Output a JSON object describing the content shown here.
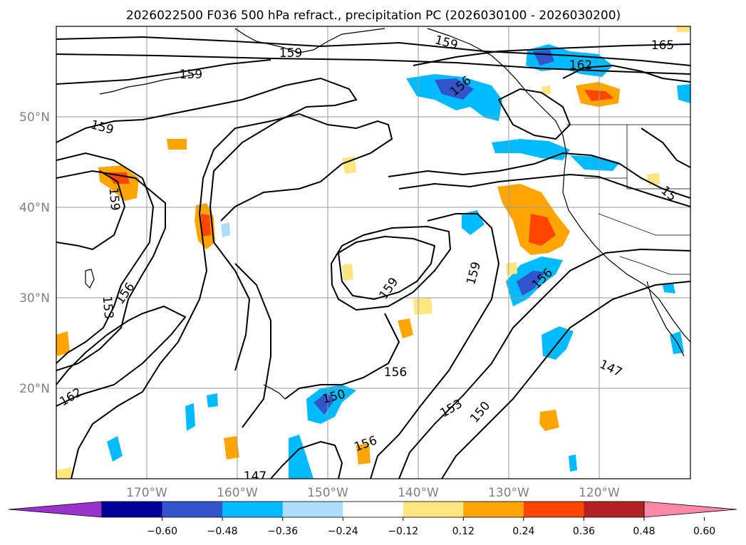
{
  "title": "2026022500 F036 500 hPa refract., precipitation PC (2026030100 - 2026030200)",
  "lat_labels": [
    "50°N",
    "40°N",
    "30°N",
    "20°N"
  ],
  "lon_labels": [
    "170°W",
    "160°W",
    "150°W",
    "140°W",
    "130°W",
    "120°W"
  ],
  "colorbar": {
    "ticks": [
      "−0.60",
      "−0.48",
      "−0.36",
      "−0.24",
      "−0.12",
      "0.12",
      "0.24",
      "0.36",
      "0.48",
      "0.60"
    ],
    "colors": [
      "#9933cc",
      "#000099",
      "#3355cc",
      "#00bbff",
      "#aaddff",
      "#ffffff",
      "#ffe680",
      "#ffa500",
      "#ff4500",
      "#b22222",
      "#ff88aa"
    ]
  },
  "contour_labels": [
    "159",
    "159",
    "165",
    "162",
    "156",
    "159",
    "159",
    "156",
    "153",
    "159",
    "159",
    "156",
    "159",
    "156",
    "162",
    "150",
    "153",
    "150",
    "156",
    "147",
    "147",
    "15"
  ]
}
